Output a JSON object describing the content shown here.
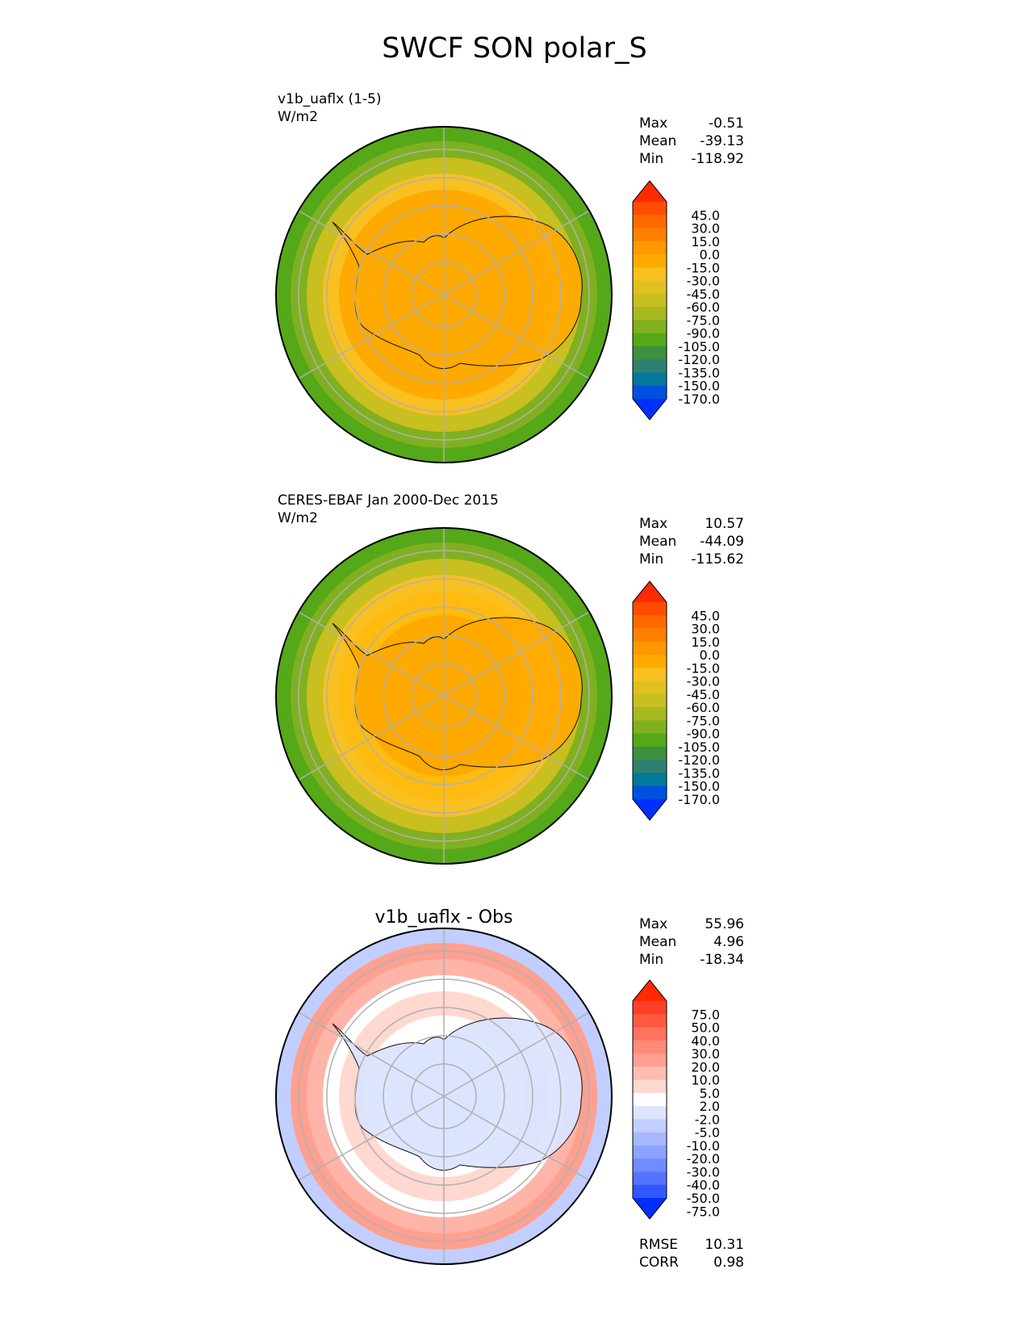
{
  "title": "SWCF SON polar_S",
  "chart_data": [
    {
      "type": "heatmap",
      "title": "v1b_uaflx (1-5)",
      "units": "W/m2",
      "stats": [
        [
          "Max",
          "-0.51"
        ],
        [
          "Mean",
          "-39.13"
        ],
        [
          "Min",
          "-118.92"
        ]
      ],
      "colorbar_labels": [
        "45.0",
        "30.0",
        "15.0",
        "0.0",
        "-15.0",
        "-30.0",
        "-45.0",
        "-60.0",
        "-75.0",
        "-90.0",
        "-105.0",
        "-120.0",
        "-135.0",
        "-150.0",
        "-170.0"
      ],
      "colors": [
        "#ff2a00",
        "#ff4d00",
        "#ff6a00",
        "#ff8000",
        "#ff9900",
        "#ffaa00",
        "#f8c020",
        "#e0c020",
        "#c8bf20",
        "#a8b820",
        "#80b020",
        "#55a818",
        "#3c9040",
        "#2f8070",
        "#007a9a",
        "#0050e0",
        "#0030ff"
      ],
      "ring_colors": [
        "#ffaa00",
        "#ffaa00",
        "#ffaa00",
        "#f8c020",
        "#c8bf20",
        "#80b020",
        "#55a818"
      ]
    },
    {
      "type": "heatmap",
      "title": "CERES-EBAF Jan 2000-Dec 2015",
      "units": "W/m2",
      "stats": [
        [
          "Max",
          "10.57"
        ],
        [
          "Mean",
          "-44.09"
        ],
        [
          "Min",
          "-115.62"
        ]
      ],
      "colorbar_labels": [
        "45.0",
        "30.0",
        "15.0",
        "0.0",
        "-15.0",
        "-30.0",
        "-45.0",
        "-60.0",
        "-75.0",
        "-90.0",
        "-105.0",
        "-120.0",
        "-135.0",
        "-150.0",
        "-170.0"
      ],
      "colors": [
        "#ff2a00",
        "#ff4d00",
        "#ff6a00",
        "#ff8000",
        "#ff9900",
        "#ffaa00",
        "#f8c020",
        "#e0c020",
        "#c8bf20",
        "#a8b820",
        "#80b020",
        "#55a818",
        "#3c9040",
        "#2f8070",
        "#007a9a",
        "#0050e0",
        "#0030ff"
      ],
      "ring_colors": [
        "#ffaa00",
        "#ffaa00",
        "#ffbb10",
        "#f8c020",
        "#c8bf20",
        "#80b020",
        "#55a818"
      ]
    },
    {
      "type": "heatmap",
      "title": "v1b_uaflx - Obs",
      "stats": [
        [
          "Max",
          "55.96"
        ],
        [
          "Mean",
          "4.96"
        ],
        [
          "Min",
          "-18.34"
        ]
      ],
      "colorbar_labels": [
        "75.0",
        "50.0",
        "40.0",
        "30.0",
        "20.0",
        "10.0",
        "5.0",
        "2.0",
        "-2.0",
        "-5.0",
        "-10.0",
        "-20.0",
        "-30.0",
        "-40.0",
        "-50.0",
        "-75.0"
      ],
      "colors": [
        "#ff2a00",
        "#ff4028",
        "#ff5a40",
        "#ff7260",
        "#ff8a78",
        "#ffa090",
        "#ffbcb0",
        "#ffd8d0",
        "#ffffff",
        "#dde4ff",
        "#c2ceff",
        "#a8b8ff",
        "#8ca2ff",
        "#708cff",
        "#5474ff",
        "#3058ff",
        "#0030ff"
      ],
      "ring_colors": [
        "#dde4ff",
        "#ffffff",
        "#ffd8d0",
        "#ffffff",
        "#ffb4a8",
        "#ffa090",
        "#c2ceff"
      ],
      "metrics": [
        [
          "RMSE",
          "10.31"
        ],
        [
          "CORR",
          "0.98"
        ]
      ]
    }
  ]
}
